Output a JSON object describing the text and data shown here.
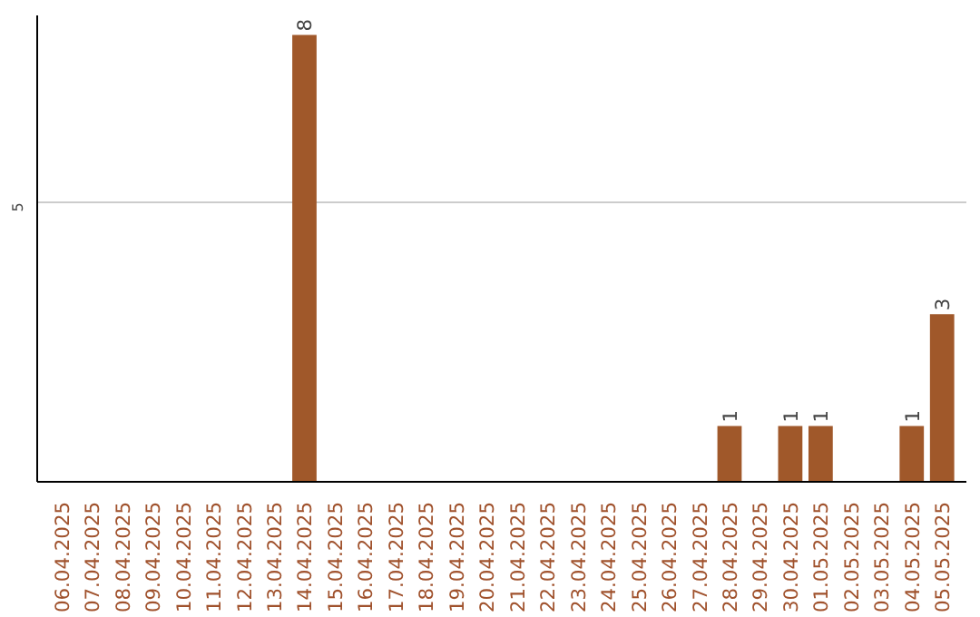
{
  "chart_data": {
    "type": "bar",
    "categories": [
      "06.04.2025",
      "07.04.2025",
      "08.04.2025",
      "09.04.2025",
      "10.04.2025",
      "11.04.2025",
      "12.04.2025",
      "13.04.2025",
      "14.04.2025",
      "15.04.2025",
      "16.04.2025",
      "17.04.2025",
      "18.04.2025",
      "19.04.2025",
      "20.04.2025",
      "21.04.2025",
      "22.04.2025",
      "23.04.2025",
      "24.04.2025",
      "25.04.2025",
      "26.04.2025",
      "27.04.2025",
      "28.04.2025",
      "29.04.2025",
      "30.04.2025",
      "01.05.2025",
      "02.05.2025",
      "03.05.2025",
      "04.05.2025",
      "05.05.2025"
    ],
    "values": [
      0,
      0,
      0,
      0,
      0,
      0,
      0,
      0,
      8,
      0,
      0,
      0,
      0,
      0,
      0,
      0,
      0,
      0,
      0,
      0,
      0,
      0,
      1,
      0,
      1,
      1,
      0,
      0,
      1,
      3
    ],
    "value_labels": [
      null,
      null,
      null,
      null,
      null,
      null,
      null,
      null,
      "8",
      null,
      null,
      null,
      null,
      null,
      null,
      null,
      null,
      null,
      null,
      null,
      null,
      null,
      "1",
      null,
      "1",
      "1",
      null,
      null,
      "1",
      "3"
    ],
    "color": "#a0582a",
    "ylim": [
      0,
      8.35
    ],
    "yticks": [
      5
    ],
    "grid": "y"
  }
}
